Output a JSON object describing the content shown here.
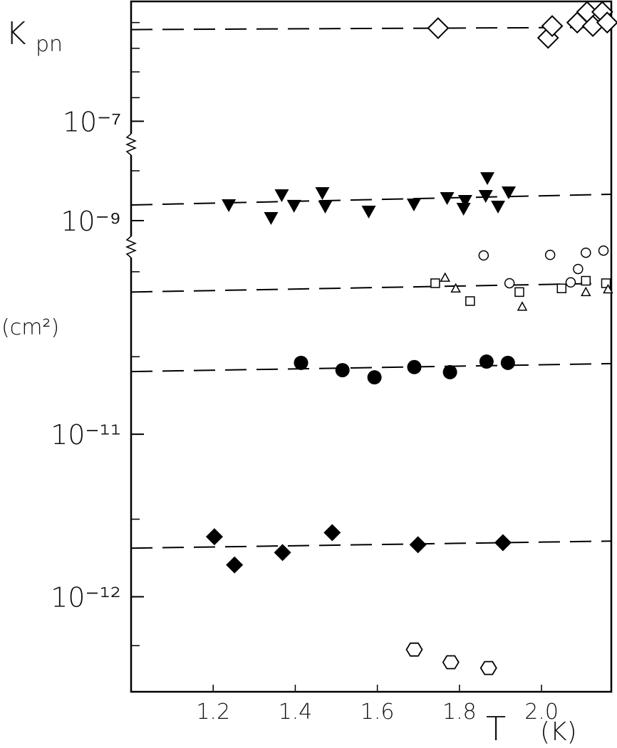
{
  "chart_data": {
    "type": "scatter",
    "ylabel": "K",
    "ylabel_sub": "pn",
    "yunit": "(cm²)",
    "xlabel": "T",
    "xunit": "(K)",
    "xlim": [
      1.0,
      2.17
    ],
    "xticks": [
      1.2,
      1.4,
      1.6,
      1.8,
      {
        "value": 2,
        "label": "2.0"
      }
    ],
    "log_y": true,
    "y_segments": [
      {
        "ylim": [
          2.6e-13,
          1.45e-10
        ],
        "yticks": [
          {
            "value": 1e-12,
            "label": "10⁻¹²"
          },
          {
            "value": 1e-11,
            "label": "10⁻¹¹"
          }
        ],
        "minor_yticks": [
          5e-13,
          3e-12,
          3e-11,
          1e-10
        ]
      },
      {
        "ylim": [
          3.16e-10,
          3.16e-08
        ],
        "yticks": [
          {
            "value": 1e-09,
            "label": "10⁻⁹"
          }
        ],
        "minor_yticks": [
          1e-08
        ]
      },
      {
        "ylim": [
          3.16e-08,
          2.68e-05
        ],
        "yticks": [
          {
            "value": 1e-07,
            "label": "10⁻⁷"
          }
        ],
        "minor_yticks": [
          3e-07,
          1e-06,
          3e-06,
          1e-05
        ]
      }
    ],
    "series": [
      {
        "marker": "diamond-open",
        "color": "#000",
        "x": [
          1.748,
          2.016,
          2.026,
          2.087,
          2.111,
          2.125,
          2.148,
          2.16
        ],
        "values": [
          7.7e-06,
          4.9e-06,
          8.5e-06,
          1e-05,
          1.64e-05,
          8.5e-06,
          1.64e-05,
          1e-05
        ]
      },
      {
        "marker": "triangle-down-filled",
        "color": "#000",
        "x": [
          1.238,
          1.341,
          1.367,
          1.397,
          1.466,
          1.473,
          1.579,
          1.689,
          1.77,
          1.81,
          1.814,
          1.864,
          1.868,
          1.894,
          1.92
        ],
        "values": [
          2.06e-09,
          1.14e-09,
          3.27e-09,
          2e-09,
          3.6e-09,
          1.93e-09,
          1.53e-09,
          2.13e-09,
          2.86e-09,
          1.75e-09,
          2.51e-09,
          3.16e-09,
          7.2e-09,
          1.93e-09,
          3.73e-09
        ]
      },
      {
        "marker": "circle-open",
        "color": "#000",
        "x": [
          1.859,
          1.922,
          2.021,
          2.071,
          2.089,
          2.108,
          2.151
        ],
        "values": [
          1.26e-10,
          8.5e-11,
          1.27e-10,
          8.6e-11,
          1.04e-10,
          1.31e-10,
          1.35e-10
        ]
      },
      {
        "marker": "square-open",
        "color": "#000",
        "x": [
          1.741,
          1.826,
          1.946,
          2.049,
          2.108,
          2.157
        ],
        "values": [
          8.5e-11,
          6.6e-11,
          7.5e-11,
          7.9e-11,
          8.8e-11,
          8.5e-11
        ]
      },
      {
        "marker": "triangle-up-open",
        "color": "#000",
        "x": [
          1.765,
          1.791,
          1.953,
          2.108,
          2.162
        ],
        "values": [
          9.2e-11,
          7.9e-11,
          6.1e-11,
          7.5e-11,
          7.8e-11
        ]
      },
      {
        "marker": "circle-filled",
        "color": "#000",
        "x": [
          1.414,
          1.515,
          1.593,
          1.69,
          1.777,
          1.866,
          1.918
        ],
        "values": [
          2.75e-11,
          2.48e-11,
          2.24e-11,
          2.59e-11,
          2.41e-11,
          2.8e-11,
          2.75e-11
        ]
      },
      {
        "marker": "diamond-filled",
        "color": "#000",
        "x": [
          1.203,
          1.252,
          1.369,
          1.49,
          1.699,
          1.906
        ],
        "values": [
          2.34e-12,
          1.57e-12,
          1.87e-12,
          2.48e-12,
          2.09e-12,
          2.15e-12
        ]
      },
      {
        "marker": "hexagon-open",
        "color": "#000",
        "x": [
          1.69,
          1.779,
          1.871
        ],
        "values": [
          4.73e-13,
          3.95e-13,
          3.64e-13
        ]
      }
    ],
    "fits": [
      {
        "x": [
          1.0,
          2.17
        ],
        "values": [
          7.2e-06,
          8e-06
        ]
      },
      {
        "x": [
          1.0,
          2.17
        ],
        "values": [
          2.06e-09,
          3.38e-09
        ]
      },
      {
        "x": [
          1.0,
          2.17
        ],
        "values": [
          7.5e-11,
          8.5e-11
        ]
      },
      {
        "x": [
          1.0,
          2.17
        ],
        "values": [
          2.43e-11,
          2.72e-11
        ]
      },
      {
        "x": [
          1.0,
          2.17
        ],
        "values": [
          1.99e-12,
          2.2e-12
        ]
      }
    ]
  }
}
